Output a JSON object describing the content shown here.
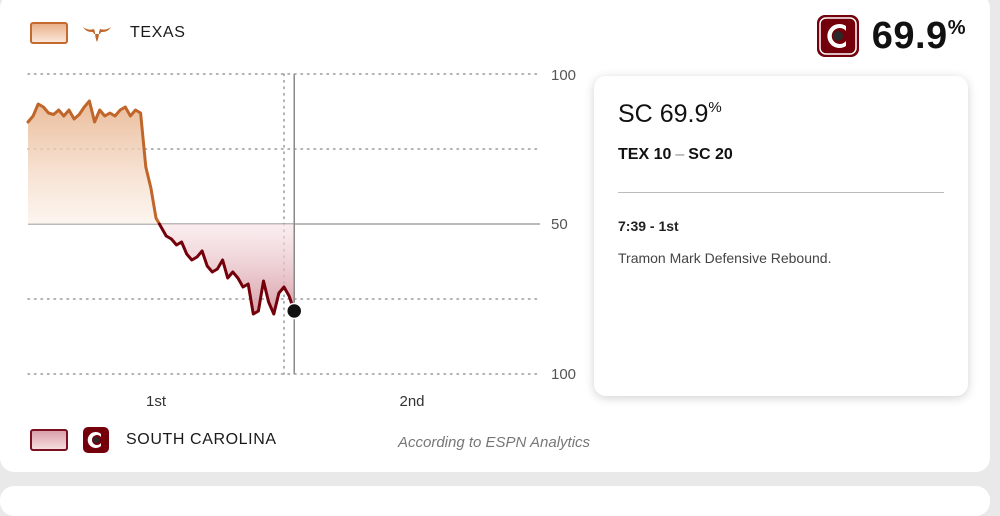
{
  "header": {
    "top_team": "TEXAS",
    "bottom_team": "SOUTH CAROLINA",
    "win_prob_value": "69.9",
    "win_prob_unit": "%"
  },
  "colors": {
    "texas": "#c1662b",
    "south_carolina": "#73000a",
    "texas_fill_top": "#e9b894",
    "sc_fill_bottom": "#d59aa3"
  },
  "source_note": "According to ESPN Analytics",
  "tooltip": {
    "team": "SC",
    "pct": "69.9",
    "pct_unit": "%",
    "away_abbr": "TEX",
    "away_score": "10",
    "dash": "–",
    "home_abbr": "SC",
    "home_score": "20",
    "time": "7:39 - 1st",
    "play": "Tramon Mark Defensive Rebound."
  },
  "chart_data": {
    "type": "line",
    "title": "",
    "y_tick_labels": [
      "100",
      "50",
      "100"
    ],
    "x_tick_labels": [
      "1st",
      "2nd"
    ],
    "ylim": [
      -100,
      100
    ],
    "xlim": [
      0,
      40
    ],
    "x_unit": "minutes elapsed",
    "y_unit": "win probability margin (positive = Texas, negative = South Carolina)",
    "series": [
      {
        "x": [
          0,
          0.4,
          0.8,
          1.2,
          1.6,
          2.0,
          2.4,
          2.8,
          3.2,
          3.6,
          4.0,
          4.4,
          4.8,
          5.2,
          5.6,
          6.0,
          6.4,
          6.8,
          7.2,
          7.6,
          8.0,
          8.4,
          8.8,
          9.2,
          9.6,
          10.0,
          10.4,
          10.8,
          11.2,
          11.6,
          12.0,
          12.4,
          12.8,
          13.2,
          13.6,
          14.0,
          14.4,
          14.8,
          15.2,
          15.6,
          16.0,
          16.4,
          16.8,
          17.2,
          17.6,
          18.0,
          18.4,
          18.8,
          19.2,
          19.6,
          20.0,
          20.4,
          20.8
        ],
        "y": [
          68,
          72,
          80,
          78,
          74,
          73,
          76,
          72,
          76,
          70,
          73,
          78,
          82,
          68,
          76,
          72,
          74,
          72,
          76,
          78,
          72,
          76,
          74,
          38,
          24,
          4,
          -2,
          -8,
          -10,
          -14,
          -12,
          -20,
          -24,
          -22,
          -18,
          -28,
          -32,
          -30,
          -24,
          -36,
          -32,
          -36,
          -42,
          -40,
          -60,
          -58,
          -38,
          -52,
          -60,
          -46,
          -42,
          -48,
          -58
        ]
      }
    ],
    "current_point": {
      "x": 20.8,
      "y": -58
    },
    "marker_x": 20.8,
    "grid": true
  }
}
